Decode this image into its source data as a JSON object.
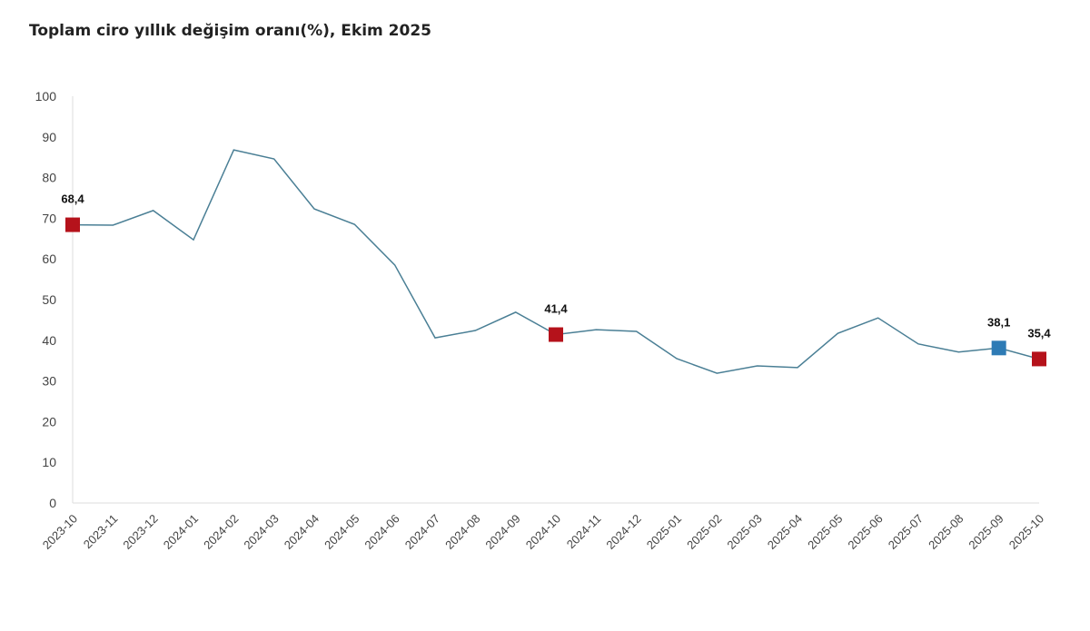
{
  "chart_data": {
    "type": "line",
    "title": "Toplam ciro yıllık değişim oranı(%), Ekim 2025",
    "xlabel": "",
    "ylabel": "",
    "ylim": [
      0,
      100
    ],
    "yticks": [
      0,
      10,
      20,
      30,
      40,
      50,
      60,
      70,
      80,
      90,
      100
    ],
    "grid": false,
    "line_color": "#4a7f95",
    "categories": [
      "2023-10",
      "2023-11",
      "2023-12",
      "2024-01",
      "2024-02",
      "2024-03",
      "2024-04",
      "2024-05",
      "2024-06",
      "2024-07",
      "2024-08",
      "2024-09",
      "2024-10",
      "2024-11",
      "2024-12",
      "2025-01",
      "2025-02",
      "2025-03",
      "2025-04",
      "2025-05",
      "2025-06",
      "2025-07",
      "2025-08",
      "2025-09",
      "2025-10"
    ],
    "values": [
      68.4,
      68.3,
      71.9,
      64.7,
      86.8,
      84.6,
      72.3,
      68.5,
      58.5,
      40.6,
      42.4,
      46.9,
      41.4,
      42.6,
      42.2,
      35.5,
      31.9,
      33.7,
      33.3,
      41.7,
      45.5,
      39.1,
      37.1,
      38.1,
      35.4
    ],
    "highlighted_points": [
      {
        "category": "2023-10",
        "label": "68,4",
        "color": "#b5121b"
      },
      {
        "category": "2024-10",
        "label": "41,4",
        "color": "#b5121b"
      },
      {
        "category": "2025-09",
        "label": "38,1",
        "color": "#2e7bb5"
      },
      {
        "category": "2025-10",
        "label": "35,4",
        "color": "#b5121b"
      }
    ]
  }
}
